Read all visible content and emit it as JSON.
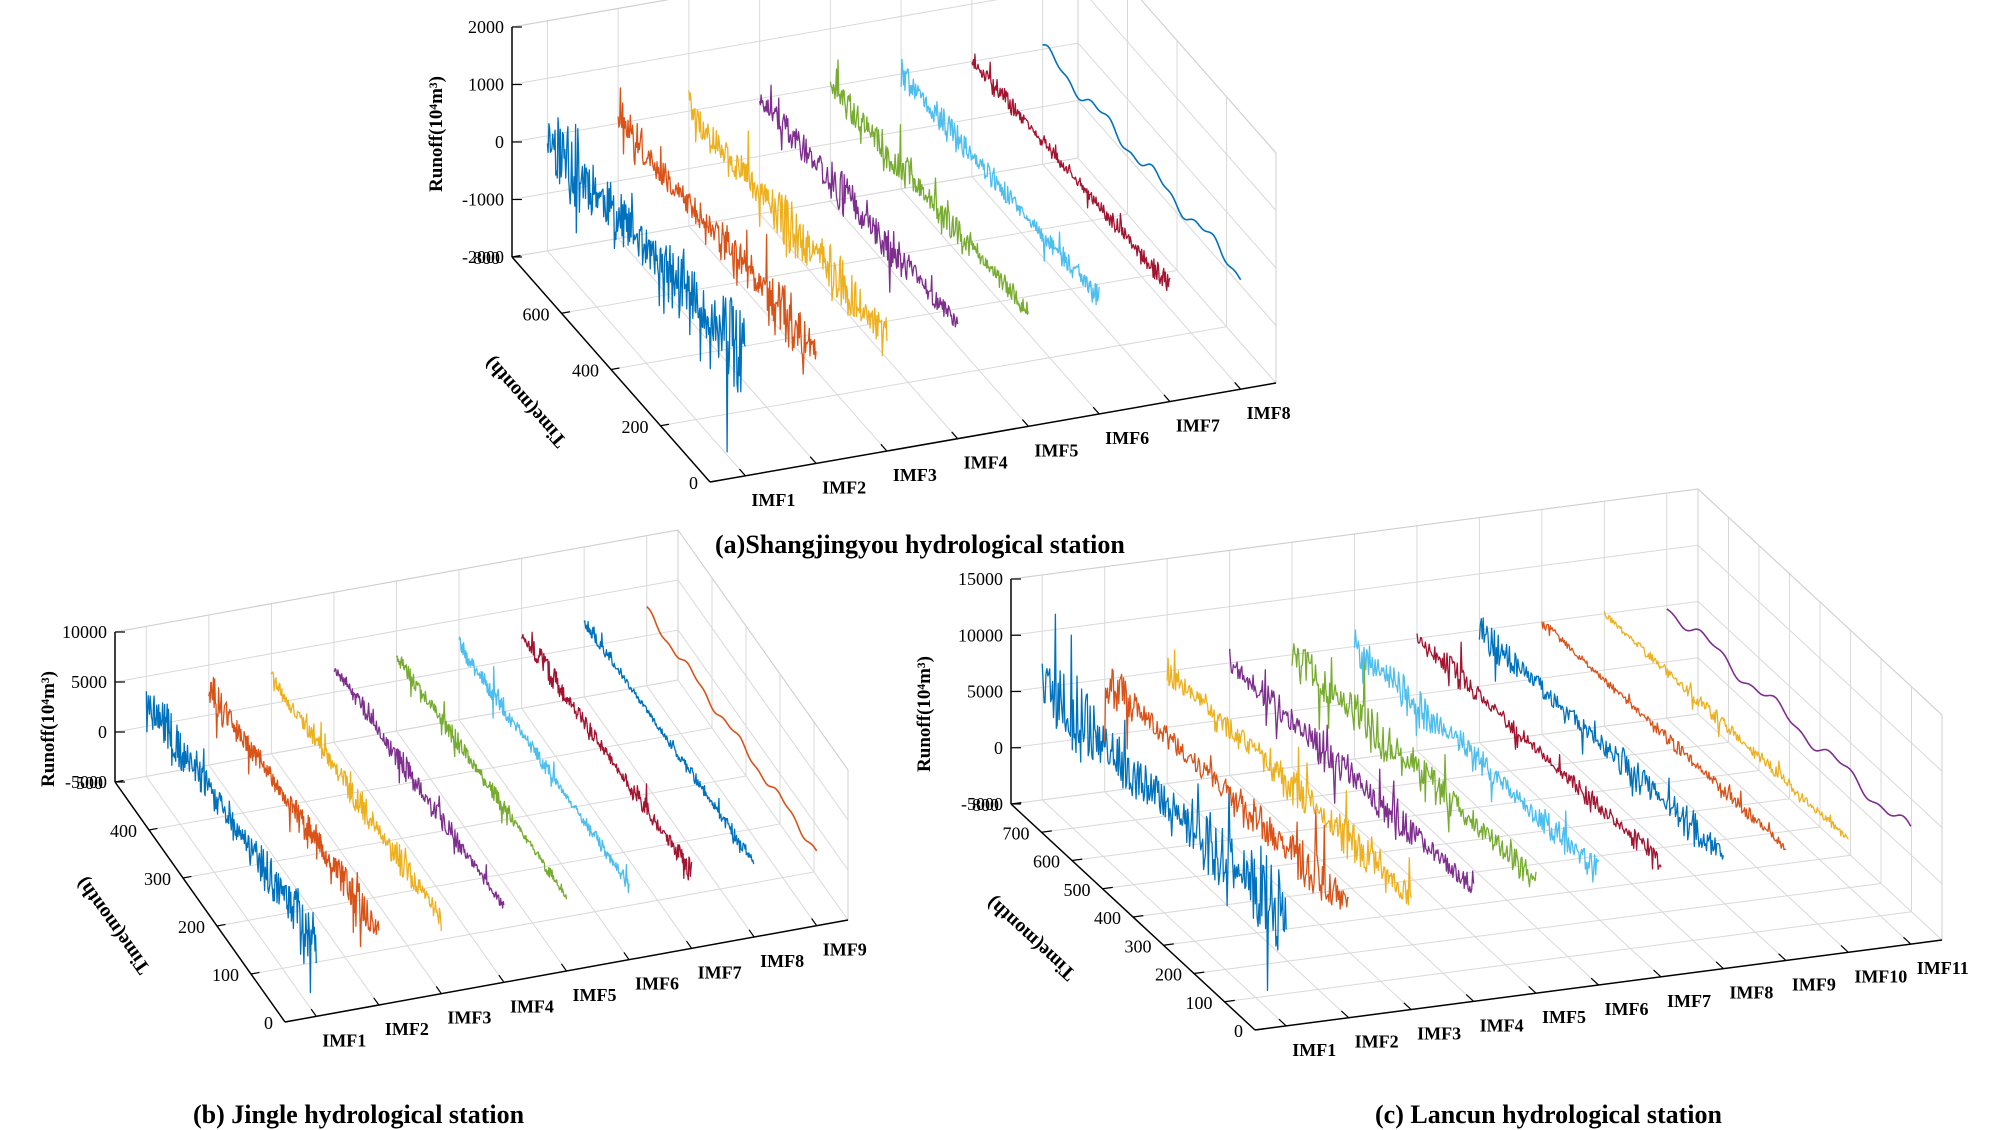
{
  "chart_data": [
    {
      "type": "line",
      "view": "3d-waterfall",
      "title": "(a)Shangjingyou hydrological station",
      "zlabel": "Runoff(10⁴m³)",
      "ylabel": "Time(month)",
      "z_ticks": [
        "2000",
        "1000",
        "0",
        "-1000",
        "-2000"
      ],
      "zlim": [
        -2000,
        2000
      ],
      "y_ticks": [
        "800",
        "600",
        "400",
        "200",
        "0"
      ],
      "ylim": [
        0,
        800
      ],
      "categories": [
        "IMF1",
        "IMF2",
        "IMF3",
        "IMF4",
        "IMF5",
        "IMF6",
        "IMF7",
        "IMF8"
      ],
      "series": [
        {
          "name": "IMF1",
          "color": "#0072BD",
          "amplitude": 0.85
        },
        {
          "name": "IMF2",
          "color": "#D95319",
          "amplitude": 0.55
        },
        {
          "name": "IMF3",
          "color": "#EDB120",
          "amplitude": 0.55
        },
        {
          "name": "IMF4",
          "color": "#7E2F8E",
          "amplitude": 0.4
        },
        {
          "name": "IMF5",
          "color": "#77AC30",
          "amplitude": 0.35
        },
        {
          "name": "IMF6",
          "color": "#4DBEEE",
          "amplitude": 0.3
        },
        {
          "name": "IMF7",
          "color": "#A2142F",
          "amplitude": 0.2
        },
        {
          "name": "IMF8",
          "color": "#0072BD",
          "amplitude": 0.3
        }
      ]
    },
    {
      "type": "line",
      "view": "3d-waterfall",
      "title": "(b) Jingle hydrological station",
      "zlabel": "Runoff(10⁴m³)",
      "ylabel": "Time(month)",
      "z_ticks": [
        "10000",
        "5000",
        "0",
        "-5000"
      ],
      "zlim": [
        -5000,
        10000
      ],
      "y_ticks": [
        "500",
        "400",
        "300",
        "200",
        "100",
        "0"
      ],
      "ylim": [
        0,
        500
      ],
      "categories": [
        "IMF1",
        "IMF2",
        "IMF3",
        "IMF4",
        "IMF5",
        "IMF6",
        "IMF7",
        "IMF8",
        "IMF9"
      ],
      "series": [
        {
          "name": "IMF1",
          "color": "#0072BD",
          "amplitude": 0.8
        },
        {
          "name": "IMF2",
          "color": "#D95319",
          "amplitude": 0.6
        },
        {
          "name": "IMF3",
          "color": "#EDB120",
          "amplitude": 0.45
        },
        {
          "name": "IMF4",
          "color": "#7E2F8E",
          "amplitude": 0.35
        },
        {
          "name": "IMF5",
          "color": "#77AC30",
          "amplitude": 0.3
        },
        {
          "name": "IMF6",
          "color": "#4DBEEE",
          "amplitude": 0.3
        },
        {
          "name": "IMF7",
          "color": "#A2142F",
          "amplitude": 0.35
        },
        {
          "name": "IMF8",
          "color": "#0072BD",
          "amplitude": 0.2
        },
        {
          "name": "IMF9",
          "color": "#D95319",
          "amplitude": 0.3
        }
      ]
    },
    {
      "type": "line",
      "view": "3d-waterfall",
      "title": "(c) Lancun hydrological station",
      "zlabel": "Runoff(10⁴m³)",
      "ylabel": "Time(month)",
      "z_ticks": [
        "15000",
        "10000",
        "5000",
        "0",
        "-5000"
      ],
      "zlim": [
        -5000,
        15000
      ],
      "y_ticks": [
        "800",
        "700",
        "600",
        "500",
        "400",
        "300",
        "200",
        "100",
        "0"
      ],
      "ylim": [
        0,
        800
      ],
      "categories": [
        "IMF1",
        "IMF2",
        "IMF3",
        "IMF4",
        "IMF5",
        "IMF6",
        "IMF7",
        "IMF8",
        "IMF9",
        "IMF10",
        "IMF11"
      ],
      "series": [
        {
          "name": "IMF1",
          "color": "#0072BD",
          "amplitude": 0.85
        },
        {
          "name": "IMF2",
          "color": "#D95319",
          "amplitude": 0.45
        },
        {
          "name": "IMF3",
          "color": "#EDB120",
          "amplitude": 0.4
        },
        {
          "name": "IMF4",
          "color": "#7E2F8E",
          "amplitude": 0.4
        },
        {
          "name": "IMF5",
          "color": "#77AC30",
          "amplitude": 0.45
        },
        {
          "name": "IMF6",
          "color": "#4DBEEE",
          "amplitude": 0.4
        },
        {
          "name": "IMF7",
          "color": "#A2142F",
          "amplitude": 0.25
        },
        {
          "name": "IMF8",
          "color": "#0072BD",
          "amplitude": 0.35
        },
        {
          "name": "IMF9",
          "color": "#D95319",
          "amplitude": 0.15
        },
        {
          "name": "IMF10",
          "color": "#EDB120",
          "amplitude": 0.15
        },
        {
          "name": "IMF11",
          "color": "#7E2F8E",
          "amplitude": 0.3
        }
      ]
    }
  ]
}
